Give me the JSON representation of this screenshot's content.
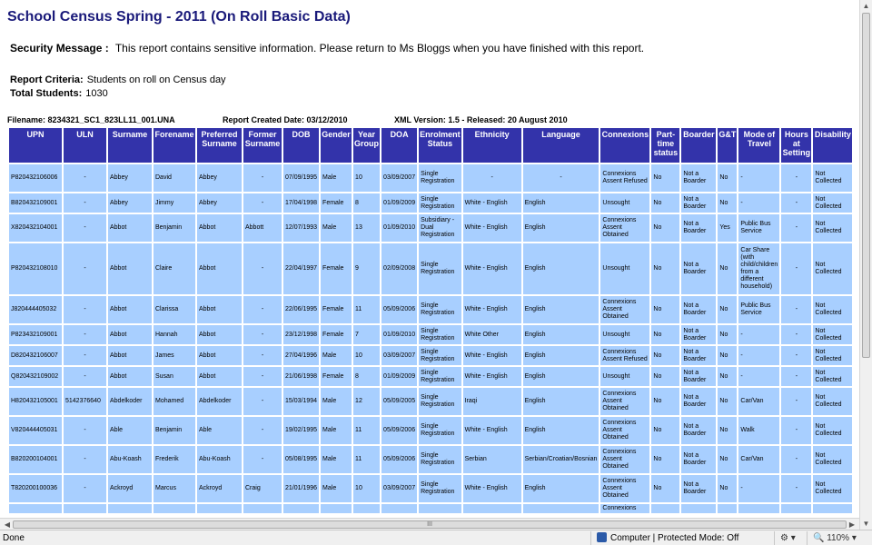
{
  "report": {
    "title": "School Census Spring - 2011 (On Roll Basic Data)",
    "security_label": "Security Message :",
    "security_text": "This report contains sensitive information. Please return to Ms Bloggs when you have finished with this report.",
    "criteria_label": "Report Criteria:",
    "criteria_value": "Students on roll on Census day",
    "total_label": "Total Students:",
    "total_value": "1030",
    "filename": "Filename: 8234321_SC1_823LL11_001.UNA",
    "created": "Report Created Date: 03/12/2010",
    "xml": "XML Version: 1.5 - Released: 20 August 2010"
  },
  "table": {
    "headers": [
      "UPN",
      "ULN",
      "Surname",
      "Forename",
      "Preferred Surname",
      "Former Surname",
      "DOB",
      "Gender",
      "Year Group",
      "DOA",
      "Enrolment Status",
      "Ethnicity",
      "Language",
      "Connexions",
      "Part-time status",
      "Boarder",
      "G&T",
      "Mode of Travel",
      "Hours at Setting",
      "Disability"
    ],
    "rows": [
      [
        "P820432106006",
        "-",
        "Abbey",
        "David",
        "Abbey",
        "-",
        "07/09/1995",
        "Male",
        "10",
        "03/09/2007",
        "Single Registration",
        "-",
        "-",
        "Connexions Assent Refused",
        "No",
        "Not a Boarder",
        "No",
        "-",
        "-",
        "Not Collected"
      ],
      [
        "B820432109001",
        "-",
        "Abbey",
        "Jimmy",
        "Abbey",
        "-",
        "17/04/1998",
        "Female",
        "8",
        "01/09/2009",
        "Single Registration",
        "White - English",
        "English",
        "Unsought",
        "No",
        "Not a Boarder",
        "No",
        "-",
        "-",
        "Not Collected"
      ],
      [
        "X820432104001",
        "-",
        "Abbot",
        "Benjamin",
        "Abbot",
        "Abbott",
        "12/07/1993",
        "Male",
        "13",
        "01/09/2010",
        "Subsidiary - Dual Registration",
        "White - English",
        "English",
        "Connexions Assent Obtained",
        "No",
        "Not a Boarder",
        "Yes",
        "Public Bus Service",
        "-",
        "Not Collected"
      ],
      [
        "P820432108010",
        "-",
        "Abbot",
        "Claire",
        "Abbot",
        "-",
        "22/04/1997",
        "Female",
        "9",
        "02/09/2008",
        "Single Registration",
        "White - English",
        "English",
        "Unsought",
        "No",
        "Not a Boarder",
        "No",
        "Car Share (with child/children from a different household)",
        "-",
        "Not Collected"
      ],
      [
        "J820444405032",
        "-",
        "Abbot",
        "Clarissa",
        "Abbot",
        "-",
        "22/06/1995",
        "Female",
        "11",
        "05/09/2006",
        "Single Registration",
        "White - English",
        "English",
        "Connexions Assent Obtained",
        "No",
        "Not a Boarder",
        "No",
        "Public Bus Service",
        "-",
        "Not Collected"
      ],
      [
        "P823432109001",
        "-",
        "Abbot",
        "Hannah",
        "Abbot",
        "-",
        "23/12/1998",
        "Female",
        "7",
        "01/09/2010",
        "Single Registration",
        "White Other",
        "English",
        "Unsought",
        "No",
        "Not a Boarder",
        "No",
        "-",
        "-",
        "Not Collected"
      ],
      [
        "D820432106007",
        "-",
        "Abbot",
        "James",
        "Abbot",
        "-",
        "27/04/1996",
        "Male",
        "10",
        "03/09/2007",
        "Single Registration",
        "White - English",
        "English",
        "Connexions Assent Refused",
        "No",
        "Not a Boarder",
        "No",
        "-",
        "-",
        "Not Collected"
      ],
      [
        "Q820432109002",
        "-",
        "Abbot",
        "Susan",
        "Abbot",
        "-",
        "21/06/1998",
        "Female",
        "8",
        "01/09/2009",
        "Single Registration",
        "White - English",
        "English",
        "Unsought",
        "No",
        "Not a Boarder",
        "No",
        "-",
        "-",
        "Not Collected"
      ],
      [
        "H820432105001",
        "5142376640",
        "Abdelkoder",
        "Mohamed",
        "Abdelkoder",
        "-",
        "15/03/1994",
        "Male",
        "12",
        "05/09/2005",
        "Single Registration",
        "Iraqi",
        "English",
        "Connexions Assent Obtained",
        "No",
        "Not a Boarder",
        "No",
        "Car/Van",
        "-",
        "Not Collected"
      ],
      [
        "V820444405031",
        "-",
        "Able",
        "Benjamin",
        "Able",
        "-",
        "19/02/1995",
        "Male",
        "11",
        "05/09/2006",
        "Single Registration",
        "White - English",
        "English",
        "Connexions Assent Obtained",
        "No",
        "Not a Boarder",
        "No",
        "Walk",
        "-",
        "Not Collected"
      ],
      [
        "B820200104001",
        "-",
        "Abu-Koash",
        "Frederik",
        "Abu-Koash",
        "-",
        "05/08/1995",
        "Male",
        "11",
        "05/09/2006",
        "Single Registration",
        "Serbian",
        "Serbian/Croatian/Bosnian",
        "Connexions Assent Obtained",
        "No",
        "Not a Boarder",
        "No",
        "Car/Van",
        "-",
        "Not Collected"
      ],
      [
        "T820200100036",
        "-",
        "Ackroyd",
        "Marcus",
        "Ackroyd",
        "Craig",
        "21/01/1996",
        "Male",
        "10",
        "03/09/2007",
        "Single Registration",
        "White - English",
        "English",
        "Connexions Assent Obtained",
        "No",
        "Not a Boarder",
        "No",
        "-",
        "-",
        "Not Collected"
      ],
      [
        "",
        "",
        "",
        "",
        "",
        "",
        "",
        "",
        "",
        "",
        "",
        "",
        "",
        "Connexions",
        "",
        "",
        "",
        "",
        "",
        ""
      ]
    ]
  },
  "statusbar": {
    "left": "Done",
    "zone": "Computer | Protected Mode: Off",
    "zoom": "110%"
  },
  "scroll": {
    "hthumb_grip": "III"
  }
}
